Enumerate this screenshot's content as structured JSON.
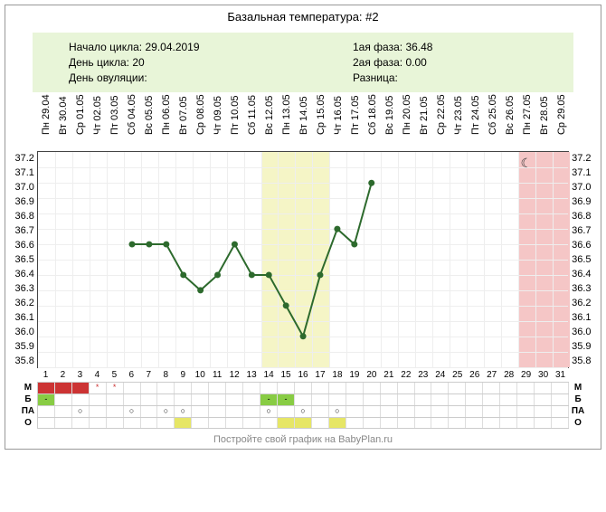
{
  "title": "Базальная температура: #2",
  "info": {
    "left": {
      "cycle_start_label": "Начало цикла:",
      "cycle_start_value": "29.04.2019",
      "cycle_day_label": "День цикла:",
      "cycle_day_value": "20",
      "ovulation_day_label": "День овуляции:",
      "ovulation_day_value": ""
    },
    "right": {
      "phase1_label": "1ая фаза:",
      "phase1_value": "36.48",
      "phase2_label": "2ая фаза:",
      "phase2_value": "0.00",
      "diff_label": "Разница:",
      "diff_value": ""
    }
  },
  "chart": {
    "type": "line",
    "x_labels": [
      "Пн 29.04",
      "Вт 30.04",
      "Ср 01.05",
      "Чт 02.05",
      "Пт 03.05",
      "Сб 04.05",
      "Вс 05.05",
      "Пн 06.05",
      "Вт 07.05",
      "Ср 08.05",
      "Чт 09.05",
      "Пт 10.05",
      "Сб 11.05",
      "Вс 12.05",
      "Пн 13.05",
      "Вт 14.05",
      "Ср 15.05",
      "Чт 16.05",
      "Пт 17.05",
      "Сб 18.05",
      "Вс 19.05",
      "Пн 20.05",
      "Вт 21.05",
      "Ср 22.05",
      "Чт 23.05",
      "Пт 24.05",
      "Сб 25.05",
      "Вс 26.05",
      "Пн 27.05",
      "Вт 28.05",
      "Ср 29.05"
    ],
    "day_numbers": [
      1,
      2,
      3,
      4,
      5,
      6,
      7,
      8,
      9,
      10,
      11,
      12,
      13,
      14,
      15,
      16,
      17,
      18,
      19,
      20,
      21,
      22,
      23,
      24,
      25,
      26,
      27,
      28,
      29,
      30,
      31
    ],
    "y_min": 35.8,
    "y_max": 37.2,
    "y_ticks": [
      37.2,
      37.1,
      37.0,
      36.9,
      36.8,
      36.7,
      36.6,
      36.5,
      36.4,
      36.3,
      36.2,
      36.1,
      36.0,
      35.9,
      35.8
    ],
    "series": {
      "color": "#2d6a2d",
      "marker_size": 5,
      "line_width": 2,
      "points": [
        {
          "day": 6,
          "value": 36.6
        },
        {
          "day": 7,
          "value": 36.6
        },
        {
          "day": 8,
          "value": 36.6
        },
        {
          "day": 9,
          "value": 36.4
        },
        {
          "day": 10,
          "value": 36.3
        },
        {
          "day": 11,
          "value": 36.4
        },
        {
          "day": 12,
          "value": 36.6
        },
        {
          "day": 13,
          "value": 36.4
        },
        {
          "day": 14,
          "value": 36.4
        },
        {
          "day": 15,
          "value": 36.2
        },
        {
          "day": 16,
          "value": 36.0
        },
        {
          "day": 17,
          "value": 36.4
        },
        {
          "day": 18,
          "value": 36.7
        },
        {
          "day": 19,
          "value": 36.6
        },
        {
          "day": 20,
          "value": 37.0
        }
      ]
    },
    "shaded_regions": [
      {
        "start": 14,
        "end": 17,
        "color": "#f5f5c6"
      },
      {
        "start": 29,
        "end": 30,
        "color": "#f5c6c6"
      },
      {
        "start": 31,
        "end": 31,
        "color": "#f5c6c6"
      }
    ],
    "moon_day": 29,
    "background_color": "#ffffff",
    "grid_color": "#eeeeee",
    "border_color": "#444444"
  },
  "tracks": {
    "labels": [
      "М",
      "Б",
      "ПА",
      "О"
    ],
    "M": {
      "cells": {
        "1": {
          "bg": "#cc3333"
        },
        "2": {
          "bg": "#cc3333"
        },
        "3": {
          "bg": "#cc3333"
        },
        "4": {
          "text": "*",
          "color": "#cc3333"
        },
        "5": {
          "text": "*",
          "color": "#cc3333"
        }
      }
    },
    "B": {
      "cells": {
        "1": {
          "bg": "#88cc44",
          "text": "-"
        },
        "14": {
          "bg": "#88cc44",
          "text": "-"
        },
        "15": {
          "bg": "#88cc44",
          "text": "-"
        }
      }
    },
    "PA": {
      "cells": {
        "3": {
          "text": "○"
        },
        "6": {
          "text": "○"
        },
        "8": {
          "text": "○"
        },
        "9": {
          "text": "○"
        },
        "14": {
          "text": "○"
        },
        "16": {
          "text": "○"
        },
        "18": {
          "text": "○"
        }
      }
    },
    "O": {
      "cells": {
        "9": {
          "bg": "#e6e666"
        },
        "15": {
          "bg": "#e6e666"
        },
        "16": {
          "bg": "#e6e666"
        },
        "18": {
          "bg": "#e6e666"
        }
      }
    }
  },
  "footer": "Постройте свой график на BabyPlan.ru"
}
